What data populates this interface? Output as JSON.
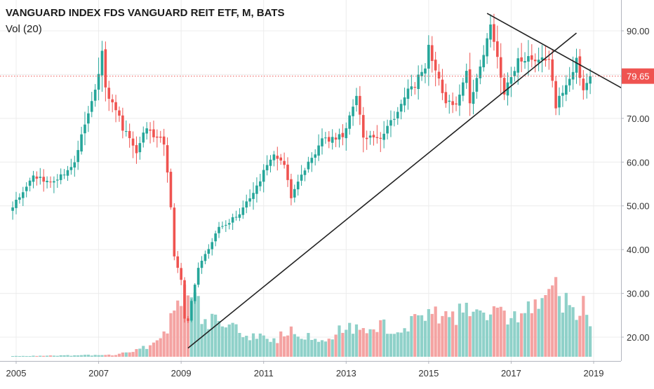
{
  "legend": {
    "title": "VANGUARD INDEX FDS VANGUARD REIT ETF, M, BATS",
    "volume_label": "Vol (20)"
  },
  "price_tag": {
    "value": "79.65",
    "color": "#ef5350"
  },
  "colors": {
    "up": "#26a69a",
    "down": "#ef5350",
    "up_volume": "#8fd1c9",
    "down_volume": "#f4a3a2",
    "trendline": "#222222",
    "axis_text": "#333333",
    "grid": "#ececec"
  },
  "chart_data": {
    "type": "candlestick",
    "title": "VANGUARD INDEX FDS VANGUARD REIT ETF, M, BATS",
    "interval": "Monthly",
    "exchange": "BATS",
    "last_price": 79.65,
    "y_axis": {
      "position": "right",
      "ticks": [
        20,
        30,
        40,
        50,
        60,
        70,
        80,
        90
      ],
      "tick_labels": [
        "20.00",
        "30.00",
        "40.00",
        "50.00",
        "60.00",
        "70.00",
        "80.00",
        "90.00"
      ],
      "range": [
        16,
        95
      ]
    },
    "x_axis": {
      "tick_labels": [
        "2005",
        "2007",
        "2009",
        "2011",
        "2013",
        "2015",
        "2017",
        "2019"
      ]
    },
    "volume_indicator": "Vol (20)",
    "price_anchors": [
      [
        "2004-12",
        50
      ],
      [
        "2005-06",
        57
      ],
      [
        "2005-12",
        55
      ],
      [
        "2006-06",
        60
      ],
      [
        "2006-12",
        77
      ],
      [
        "2007-02",
        85
      ],
      [
        "2007-03",
        77
      ],
      [
        "2007-08",
        68
      ],
      [
        "2007-12",
        62
      ],
      [
        "2008-03",
        68
      ],
      [
        "2008-08",
        64
      ],
      [
        "2008-10",
        50
      ],
      [
        "2008-11",
        38
      ],
      [
        "2009-01",
        33
      ],
      [
        "2009-02",
        24
      ],
      [
        "2009-03",
        24
      ],
      [
        "2009-06",
        36
      ],
      [
        "2009-12",
        45
      ],
      [
        "2010-06",
        48
      ],
      [
        "2010-12",
        56
      ],
      [
        "2011-04",
        62
      ],
      [
        "2011-07",
        60
      ],
      [
        "2011-09",
        52
      ],
      [
        "2011-12",
        57
      ],
      [
        "2012-06",
        65
      ],
      [
        "2012-12",
        66
      ],
      [
        "2013-04",
        75
      ],
      [
        "2013-06",
        65
      ],
      [
        "2013-12",
        66
      ],
      [
        "2014-06",
        75
      ],
      [
        "2014-12",
        81
      ],
      [
        "2015-01",
        86
      ],
      [
        "2015-06",
        74
      ],
      [
        "2015-09",
        73
      ],
      [
        "2015-12",
        80
      ],
      [
        "2016-01",
        74
      ],
      [
        "2016-02",
        76
      ],
      [
        "2016-07",
        91
      ],
      [
        "2016-11",
        76
      ],
      [
        "2017-03",
        83
      ],
      [
        "2017-07",
        84
      ],
      [
        "2017-12",
        83
      ],
      [
        "2018-02",
        73
      ],
      [
        "2018-05",
        78
      ],
      [
        "2018-08",
        83
      ],
      [
        "2018-10",
        77
      ],
      [
        "2018-12",
        80
      ]
    ],
    "volume_anchors": [
      [
        "2004-12",
        0.01
      ],
      [
        "2007-06",
        0.03
      ],
      [
        "2008-06",
        0.2
      ],
      [
        "2008-09",
        0.5
      ],
      [
        "2008-12",
        0.85
      ],
      [
        "2009-03",
        0.95
      ],
      [
        "2009-09",
        0.55
      ],
      [
        "2010-06",
        0.4
      ],
      [
        "2011-03",
        0.25
      ],
      [
        "2011-09",
        0.4
      ],
      [
        "2012-06",
        0.32
      ],
      [
        "2013-06",
        0.5
      ],
      [
        "2014-06",
        0.45
      ],
      [
        "2015-03",
        0.65
      ],
      [
        "2016-03",
        0.7
      ],
      [
        "2017-03",
        0.65
      ],
      [
        "2018-02",
        1.0
      ],
      [
        "2018-06",
        0.7
      ],
      [
        "2018-10",
        0.8
      ],
      [
        "2018-12",
        0.5
      ]
    ],
    "trendlines": [
      {
        "from": [
          "2009-03",
          17.5
        ],
        "to": [
          "2018-08",
          89.5
        ]
      },
      {
        "from": [
          "2016-06",
          94
        ],
        "to": [
          "2019-09",
          77
        ]
      }
    ]
  }
}
